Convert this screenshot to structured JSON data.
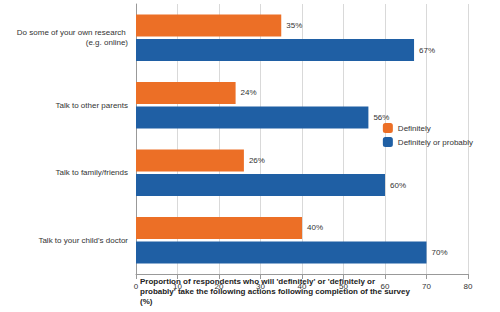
{
  "chart_data": {
    "type": "bar",
    "orientation": "horizontal",
    "x_label": "Proportion of respondents who will 'definitely' or 'definitely or probably' take the following actions following completion of the survey (%)",
    "categories": [
      "Do some of your own research (e.g. online)",
      "Talk to other parents",
      "Talk to family/friends",
      "Talk to your child's doctor"
    ],
    "series": [
      {
        "name": "Definitely",
        "color": "#ec6f26",
        "values": [
          35,
          24,
          26,
          40
        ],
        "value_labels": [
          "35%",
          "24%",
          "26%",
          "40%"
        ]
      },
      {
        "name": "Definitely or probably",
        "color": "#1f5fa4",
        "values": [
          67,
          56,
          60,
          70
        ],
        "value_labels": [
          "67%",
          "56%",
          "60%",
          "70%"
        ]
      }
    ],
    "xlim": [
      0,
      80
    ],
    "xticks": [
      0,
      10,
      20,
      30,
      40,
      50,
      60,
      70,
      80
    ],
    "grid": true,
    "legend": "right",
    "data_labels": true
  }
}
